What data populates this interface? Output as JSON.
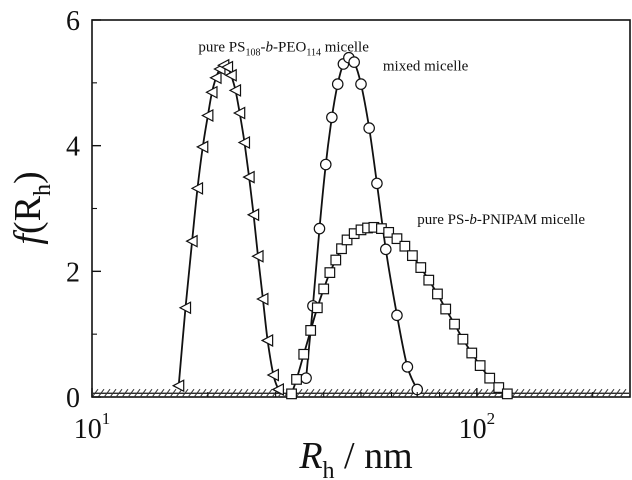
{
  "chart_data": {
    "type": "scatter",
    "xscale": "log",
    "xlim": [
      10,
      250
    ],
    "ylim": [
      0,
      6
    ],
    "xlabel": {
      "main": "R",
      "sub": "h",
      "rest": " / nm"
    },
    "ylabel": {
      "main": "f",
      "paren_open": "(R",
      "sub": "h",
      "paren_close": ")"
    },
    "xticks": [
      {
        "value": 10,
        "base": "10",
        "exp": "1"
      },
      {
        "value": 100,
        "base": "10",
        "exp": "2"
      }
    ],
    "yticks": [
      0,
      2,
      4,
      6
    ],
    "grid": false,
    "legend": "none",
    "baseline_value": 0.06,
    "series": [
      {
        "marker": "triangle-left",
        "values": [
          [
            16.8,
            0.18
          ],
          [
            17.5,
            1.42
          ],
          [
            18.2,
            2.48
          ],
          [
            18.8,
            3.32
          ],
          [
            19.4,
            3.98
          ],
          [
            20.0,
            4.48
          ],
          [
            20.5,
            4.85
          ],
          [
            21.0,
            5.08
          ],
          [
            21.5,
            5.22
          ],
          [
            22.0,
            5.28
          ],
          [
            22.5,
            5.25
          ],
          [
            23.0,
            5.12
          ],
          [
            23.6,
            4.88
          ],
          [
            24.2,
            4.52
          ],
          [
            24.9,
            4.05
          ],
          [
            25.6,
            3.5
          ],
          [
            26.3,
            2.9
          ],
          [
            27.0,
            2.24
          ],
          [
            27.8,
            1.56
          ],
          [
            28.6,
            0.9
          ],
          [
            29.6,
            0.35
          ],
          [
            30.5,
            0.12
          ]
        ]
      },
      {
        "marker": "circle",
        "values": [
          [
            36.0,
            0.3
          ],
          [
            37.5,
            1.45
          ],
          [
            39.0,
            2.68
          ],
          [
            40.5,
            3.7
          ],
          [
            42.0,
            4.45
          ],
          [
            43.5,
            4.98
          ],
          [
            45.0,
            5.3
          ],
          [
            46.5,
            5.4
          ],
          [
            48.0,
            5.33
          ],
          [
            50.0,
            4.98
          ],
          [
            52.5,
            4.28
          ],
          [
            55.0,
            3.4
          ],
          [
            58.0,
            2.35
          ],
          [
            62.0,
            1.3
          ],
          [
            66.0,
            0.48
          ],
          [
            70.0,
            0.12
          ]
        ]
      },
      {
        "marker": "square",
        "values": [
          [
            33.0,
            0.05
          ],
          [
            34.0,
            0.28
          ],
          [
            35.5,
            0.68
          ],
          [
            37.0,
            1.06
          ],
          [
            38.5,
            1.42
          ],
          [
            40.0,
            1.72
          ],
          [
            41.5,
            1.98
          ],
          [
            43.0,
            2.18
          ],
          [
            44.5,
            2.36
          ],
          [
            46.0,
            2.5
          ],
          [
            48.0,
            2.6
          ],
          [
            50.0,
            2.66
          ],
          [
            52.0,
            2.69
          ],
          [
            54.0,
            2.7
          ],
          [
            56.5,
            2.68
          ],
          [
            59.0,
            2.62
          ],
          [
            62.0,
            2.52
          ],
          [
            65.0,
            2.4
          ],
          [
            68.0,
            2.25
          ],
          [
            71.5,
            2.06
          ],
          [
            75.0,
            1.86
          ],
          [
            79.0,
            1.64
          ],
          [
            83.0,
            1.4
          ],
          [
            87.5,
            1.16
          ],
          [
            92.0,
            0.92
          ],
          [
            97.0,
            0.7
          ],
          [
            102.0,
            0.5
          ],
          [
            108.0,
            0.3
          ],
          [
            114.0,
            0.15
          ],
          [
            120.0,
            0.05
          ]
        ]
      }
    ],
    "annotations": [
      {
        "parts": [
          {
            "t": "pure PS"
          },
          {
            "t": "108",
            "sub": true
          },
          {
            "t": "-"
          },
          {
            "t": "b",
            "italic": true
          },
          {
            "t": "-PEO"
          },
          {
            "t": "114",
            "sub": true
          },
          {
            "t": " micelle"
          }
        ],
        "x": 18.9,
        "y": 5.5
      },
      {
        "parts": [
          {
            "t": "mixed micelle"
          }
        ],
        "x": 57.0,
        "y": 5.2
      },
      {
        "parts": [
          {
            "t": "pure PS-"
          },
          {
            "t": "b",
            "italic": true
          },
          {
            "t": "-PNIPAM micelle"
          }
        ],
        "x": 70.0,
        "y": 2.75
      }
    ]
  }
}
